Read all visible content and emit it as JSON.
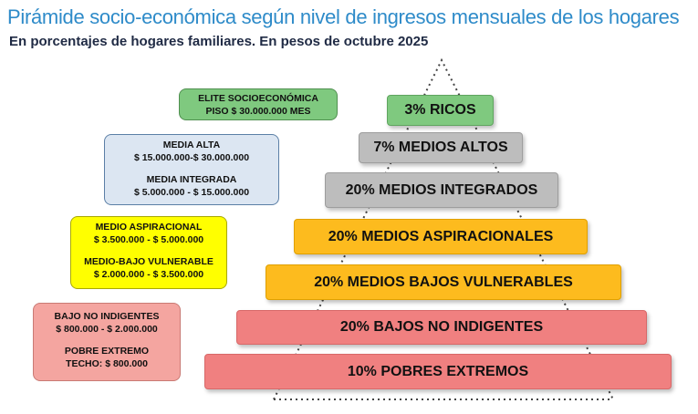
{
  "header": {
    "title": "Pirámide socio-económica según nivel de ingresos mensuales de los hogares",
    "subtitle": "En porcentajes de hogares familiares. En pesos de octubre 2025"
  },
  "pyramid": {
    "levels": [
      {
        "label": "3%  RICOS",
        "color": "#7fc97f"
      },
      {
        "label": "7%  MEDIOS ALTOS",
        "color": "#bdbdbd"
      },
      {
        "label": "20%  MEDIOS INTEGRADOS",
        "color": "#bdbdbd"
      },
      {
        "label": "20%  MEDIOS ASPIRACIONALES",
        "color": "#fdbb1e"
      },
      {
        "label": "20%  MEDIOS BAJOS VULNERABLES",
        "color": "#fdbb1e"
      },
      {
        "label": "20%  BAJOS NO INDIGENTES",
        "color": "#f08080"
      },
      {
        "label": "10%  POBRES EXTREMOS",
        "color": "#f08080"
      }
    ]
  },
  "income_boxes": {
    "elite": {
      "l1": "ELITE SOCIOECONÓMICA",
      "l2": "PISO $ 30.000.000 MES"
    },
    "media": {
      "l1": "MEDIA ALTA",
      "l2": "$ 15.000.000-$ 30.000.000",
      "l3": "MEDIA INTEGRADA",
      "l4": "$ 5.000.000 - $ 15.000.000"
    },
    "medio": {
      "l1": "MEDIO ASPIRACIONAL",
      "l2": "$ 3.500.000 - $ 5.000.000",
      "l3": "MEDIO-BAJO VULNERABLE",
      "l4": "$ 2.000.000 - $ 3.500.000"
    },
    "bajo": {
      "l1": "BAJO NO INDIGENTES",
      "l2": "$ 800.000 - $ 2.000.000",
      "l3": "POBRE EXTREMO",
      "l4": "TECHO: $ 800.000"
    }
  }
}
